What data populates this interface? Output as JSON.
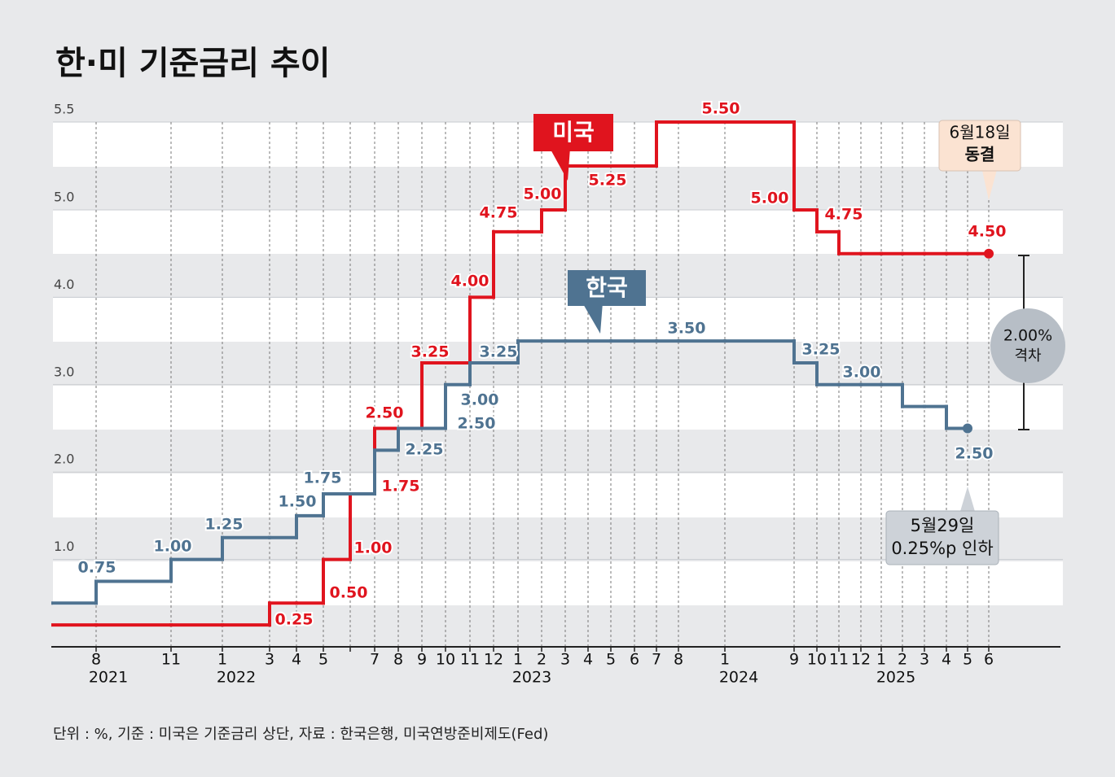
{
  "chart_data": {
    "type": "step",
    "title": "한·미 기준금리 추이",
    "categories": [
      null,
      "8",
      "11",
      "1",
      "3",
      "4",
      "5",
      null,
      "7",
      "8",
      "9",
      "10",
      "11",
      "12",
      "1",
      "2",
      "3",
      "4",
      "5",
      "6",
      "7",
      "8",
      "1",
      "9",
      "10",
      "11",
      "12",
      "1",
      "2",
      "3",
      "4",
      "5",
      "6"
    ],
    "years": [
      "2021",
      "2022",
      "2023",
      "2024",
      "2025"
    ],
    "series": [
      {
        "name": "미국",
        "color": "#e0141e",
        "values": [
          0.25,
          0.25,
          0.25,
          0.25,
          0.5,
          0.5,
          1.0,
          1.75,
          2.5,
          2.5,
          3.25,
          3.25,
          4.0,
          4.75,
          4.75,
          5.0,
          5.25,
          5.25,
          5.25,
          5.25,
          5.5,
          5.5,
          5.5,
          5.0,
          4.75,
          4.5,
          4.5,
          4.5,
          4.5,
          4.5,
          4.5,
          4.5,
          4.5
        ],
        "value_labels": [
          "0.25",
          null,
          null,
          null,
          "0.50",
          null,
          "1.00",
          "1.75",
          "2.50",
          null,
          "3.25",
          null,
          "4.00",
          "4.75",
          null,
          "5.00",
          "5.25",
          null,
          null,
          null,
          "5.50",
          null,
          null,
          "5.00",
          "4.75",
          null,
          null,
          null,
          null,
          null,
          null,
          null,
          "4.50"
        ]
      },
      {
        "name": "한국",
        "color": "#4f7391",
        "values": [
          0.5,
          0.75,
          1.0,
          1.25,
          1.25,
          1.5,
          1.75,
          1.75,
          2.25,
          2.5,
          2.5,
          3.0,
          3.25,
          3.25,
          3.5,
          3.5,
          3.5,
          3.5,
          3.5,
          3.5,
          3.5,
          3.5,
          3.5,
          3.25,
          3.0,
          3.0,
          3.0,
          3.0,
          2.75,
          2.75,
          2.5,
          2.5,
          null
        ],
        "value_labels": [
          null,
          "0.75",
          "1.00",
          "1.25",
          null,
          "1.50",
          "1.75",
          null,
          "2.25",
          "2.50",
          null,
          "3.00",
          "3.25",
          null,
          "3.50",
          null,
          null,
          null,
          null,
          null,
          null,
          null,
          null,
          "3.25",
          "3.00",
          null,
          null,
          null,
          null,
          null,
          null,
          "2.50",
          null
        ]
      }
    ],
    "ylim": [
      0,
      5.5
    ],
    "yticks": [
      {
        "value": 1,
        "label": "1.0"
      },
      {
        "value": 2,
        "label": "2.0"
      },
      {
        "value": 3,
        "label": "3.0"
      },
      {
        "value": 4,
        "label": "4.0"
      },
      {
        "value": 5,
        "label": "5.0"
      },
      5.5
    ],
    "annotations": {
      "us_note": [
        "6월18일",
        "동결"
      ],
      "kr_note": [
        "5월29일",
        "0.25%p 인하"
      ],
      "gap": [
        "2.00%",
        "격차"
      ]
    },
    "footnote": "단위 : %, 기준 : 미국은 기준금리 상단, 자료 : 한국은행, 미국연방준비제도(Fed)"
  }
}
